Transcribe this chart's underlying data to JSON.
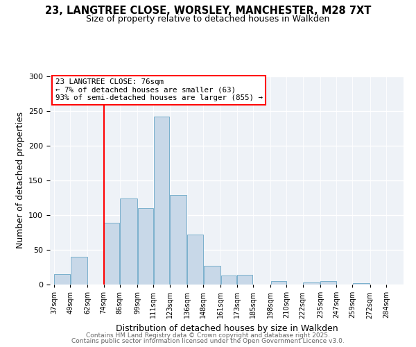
{
  "title": "23, LANGTREE CLOSE, WORSLEY, MANCHESTER, M28 7XT",
  "subtitle": "Size of property relative to detached houses in Walkden",
  "xlabel": "Distribution of detached houses by size in Walkden",
  "ylabel": "Number of detached properties",
  "bar_color": "#c8d8e8",
  "bar_edge_color": "#7ab0cc",
  "bins": [
    "37sqm",
    "49sqm",
    "62sqm",
    "74sqm",
    "86sqm",
    "99sqm",
    "111sqm",
    "123sqm",
    "136sqm",
    "148sqm",
    "161sqm",
    "173sqm",
    "185sqm",
    "198sqm",
    "210sqm",
    "222sqm",
    "235sqm",
    "247sqm",
    "259sqm",
    "272sqm",
    "284sqm"
  ],
  "values": [
    15,
    40,
    0,
    89,
    124,
    110,
    242,
    129,
    72,
    27,
    13,
    14,
    0,
    5,
    0,
    3,
    5,
    0,
    2,
    0
  ],
  "vline_x": 74,
  "bin_edges": [
    37,
    49,
    62,
    74,
    86,
    99,
    111,
    123,
    136,
    148,
    161,
    173,
    185,
    198,
    210,
    222,
    235,
    247,
    259,
    272,
    284
  ],
  "annotation_title": "23 LANGTREE CLOSE: 76sqm",
  "annotation_line1": "← 7% of detached houses are smaller (63)",
  "annotation_line2": "93% of semi-detached houses are larger (855) →",
  "ylim": [
    0,
    300
  ],
  "yticks": [
    0,
    50,
    100,
    150,
    200,
    250,
    300
  ],
  "footer1": "Contains HM Land Registry data © Crown copyright and database right 2025.",
  "footer2": "Contains public sector information licensed under the Open Government Licence v3.0.",
  "background_color": "#eef2f7"
}
